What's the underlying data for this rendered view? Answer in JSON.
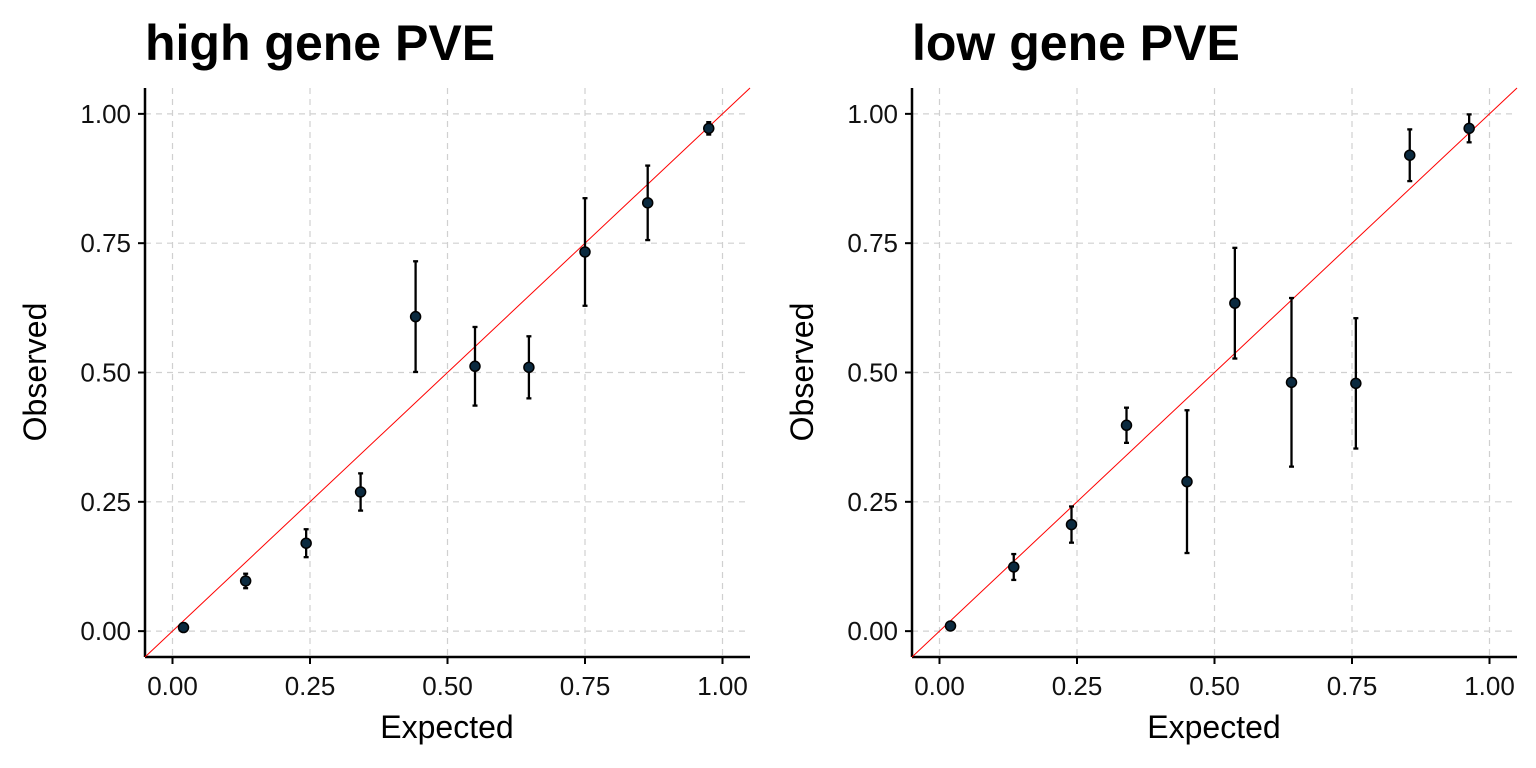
{
  "chart_data": [
    {
      "type": "scatter",
      "title": "high gene PVE",
      "xlabel": "Expected",
      "ylabel": "Observed",
      "xlim": [
        -0.05,
        1.05
      ],
      "ylim": [
        -0.05,
        1.05
      ],
      "x_ticks": [
        "0.00",
        "0.25",
        "0.50",
        "0.75",
        "1.00"
      ],
      "y_ticks": [
        "0.00",
        "0.25",
        "0.50",
        "0.75",
        "1.00"
      ],
      "grid": true,
      "reference_line": "y = x",
      "colors": {
        "reference_line": "#ff0000",
        "points": "#0b2a3f"
      },
      "points": [
        {
          "x": 0.02,
          "y": 0.007,
          "lo": 0.003,
          "hi": 0.011
        },
        {
          "x": 0.133,
          "y": 0.097,
          "lo": 0.083,
          "hi": 0.111
        },
        {
          "x": 0.243,
          "y": 0.17,
          "lo": 0.143,
          "hi": 0.197
        },
        {
          "x": 0.342,
          "y": 0.269,
          "lo": 0.233,
          "hi": 0.305
        },
        {
          "x": 0.442,
          "y": 0.608,
          "lo": 0.501,
          "hi": 0.715
        },
        {
          "x": 0.55,
          "y": 0.512,
          "lo": 0.436,
          "hi": 0.588
        },
        {
          "x": 0.648,
          "y": 0.51,
          "lo": 0.45,
          "hi": 0.57
        },
        {
          "x": 0.75,
          "y": 0.733,
          "lo": 0.629,
          "hi": 0.837
        },
        {
          "x": 0.864,
          "y": 0.828,
          "lo": 0.756,
          "hi": 0.9
        },
        {
          "x": 0.975,
          "y": 0.972,
          "lo": 0.96,
          "hi": 0.984
        }
      ]
    },
    {
      "type": "scatter",
      "title": "low gene PVE",
      "xlabel": "Expected",
      "ylabel": "Observed",
      "xlim": [
        -0.05,
        1.05
      ],
      "ylim": [
        -0.05,
        1.05
      ],
      "x_ticks": [
        "0.00",
        "0.25",
        "0.50",
        "0.75",
        "1.00"
      ],
      "y_ticks": [
        "0.00",
        "0.25",
        "0.50",
        "0.75",
        "1.00"
      ],
      "grid": true,
      "reference_line": "y = x",
      "colors": {
        "reference_line": "#ff0000",
        "points": "#0b2a3f"
      },
      "points": [
        {
          "x": 0.02,
          "y": 0.01,
          "lo": 0.005,
          "hi": 0.015
        },
        {
          "x": 0.135,
          "y": 0.124,
          "lo": 0.099,
          "hi": 0.149
        },
        {
          "x": 0.24,
          "y": 0.206,
          "lo": 0.171,
          "hi": 0.241
        },
        {
          "x": 0.34,
          "y": 0.398,
          "lo": 0.364,
          "hi": 0.432
        },
        {
          "x": 0.45,
          "y": 0.289,
          "lo": 0.151,
          "hi": 0.427
        },
        {
          "x": 0.537,
          "y": 0.634,
          "lo": 0.527,
          "hi": 0.741
        },
        {
          "x": 0.64,
          "y": 0.481,
          "lo": 0.318,
          "hi": 0.644
        },
        {
          "x": 0.757,
          "y": 0.479,
          "lo": 0.353,
          "hi": 0.605
        },
        {
          "x": 0.855,
          "y": 0.92,
          "lo": 0.87,
          "hi": 0.97
        },
        {
          "x": 0.963,
          "y": 0.972,
          "lo": 0.945,
          "hi": 0.999
        }
      ]
    }
  ]
}
